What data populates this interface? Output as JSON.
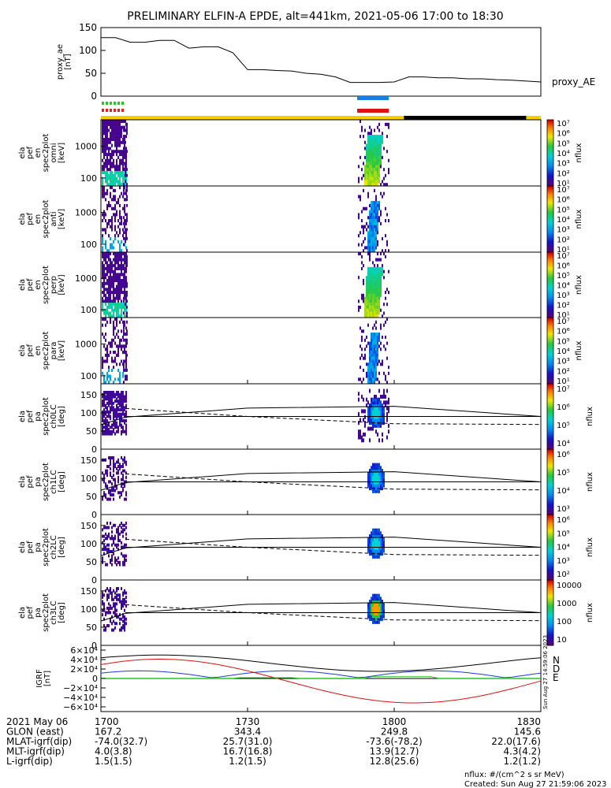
{
  "title": "PRELIMINARY ELFIN-A EPDE, alt=441km, 2021-05-06 17:00 to 18:30",
  "chart_data": {
    "type": "multi-panel",
    "time_start_min": 0,
    "time_end_min": 90,
    "proxy_ae": {
      "ylabel": [
        "proxy_ae",
        "[nT]"
      ],
      "legend": "proxy_AE",
      "ylim": [
        0,
        150
      ],
      "yticks": [
        "150",
        "100",
        "50",
        "0"
      ],
      "t": [
        0,
        3,
        6,
        9,
        12,
        15,
        18,
        21,
        24,
        27,
        30,
        33,
        36,
        39,
        42,
        45,
        48,
        51,
        54,
        57,
        60,
        63,
        66,
        69,
        72,
        75,
        78,
        81,
        84,
        87,
        90
      ],
      "v": [
        128,
        128,
        118,
        118,
        122,
        122,
        105,
        108,
        108,
        95,
        58,
        58,
        56,
        55,
        50,
        48,
        42,
        30,
        30,
        30,
        31,
        42,
        42,
        40,
        40,
        38,
        38,
        36,
        35,
        33,
        31
      ]
    },
    "status_bar": {
      "color_main": "#f0d000",
      "color_dark": "#000000",
      "dark_start_min": 62,
      "dark_end_min": 87
    },
    "markers": {
      "left_colors": [
        "#22cc22",
        "#dd2222"
      ],
      "right_colors": [
        "#1a7ee0",
        "#dd1111"
      ]
    },
    "energy_panels": [
      {
        "ylabel": [
          "ela",
          "pef",
          "en",
          "spec2plot",
          "omni",
          "[keV]"
        ],
        "yticks": [
          "1000",
          "100"
        ],
        "cb_label": "nflux"
      },
      {
        "ylabel": [
          "ela",
          "pef",
          "en",
          "spec2plot",
          "anti",
          "[keV]"
        ],
        "yticks": [
          "1000",
          "100"
        ],
        "cb_label": "nflux"
      },
      {
        "ylabel": [
          "ela",
          "pef",
          "en",
          "spec2plot",
          "perp",
          "[keV]"
        ],
        "yticks": [
          "1000",
          "100"
        ],
        "cb_label": "nflux"
      },
      {
        "ylabel": [
          "ela",
          "pef",
          "en",
          "spec2plot",
          "para",
          "[keV]"
        ],
        "yticks": [
          "1000",
          "100"
        ],
        "cb_label": "nflux"
      }
    ],
    "energy_cb_ticks": [
      "10⁷",
      "10⁶",
      "10⁵",
      "10⁴",
      "10³",
      "10²",
      "10¹"
    ],
    "pa_panels": [
      {
        "ylabel": [
          "ela",
          "pef",
          "pa",
          "spec2plot",
          "ch0LC",
          "[deg]"
        ],
        "yticks": [
          "150",
          "100",
          "50",
          "0"
        ],
        "cb_ticks": [
          "10⁷",
          "10⁶",
          "10⁵",
          "10⁴"
        ],
        "cb_label": "nflux"
      },
      {
        "ylabel": [
          "ela",
          "pef",
          "pa",
          "spec2plot",
          "ch1LC",
          "[deg]"
        ],
        "yticks": [
          "150",
          "100",
          "50",
          "0"
        ],
        "cb_ticks": [
          "10⁶",
          "10⁵",
          "10⁴",
          "10³"
        ],
        "cb_label": "nflux"
      },
      {
        "ylabel": [
          "ela",
          "pef",
          "pa",
          "spec2plot",
          "ch2LC",
          "[deg]"
        ],
        "yticks": [
          "150",
          "100",
          "50",
          "0"
        ],
        "cb_ticks": [
          "10⁶",
          "10⁵",
          "10⁴",
          "10³",
          "10²"
        ],
        "cb_label": "nflux"
      },
      {
        "ylabel": [
          "ela",
          "pef",
          "pa",
          "spec2plot",
          "ch3LC",
          "[deg]"
        ],
        "yticks": [
          "150",
          "100",
          "50",
          "0"
        ],
        "cb_ticks": [
          "10000",
          "1000",
          "100",
          "10"
        ],
        "cb_label": "nflux"
      }
    ],
    "igrf": {
      "ylabel": [
        "IGRF",
        "[nT]"
      ],
      "yticks": [
        "6×10⁴",
        "4×10⁴",
        "2×10⁴",
        "0",
        "−2×10⁴",
        "−4×10⁴",
        "−6×10⁴"
      ],
      "legend": [
        {
          "name": "N",
          "color": "#1a3adf"
        },
        {
          "name": "D",
          "color": "#dd1111"
        },
        {
          "name": "E",
          "color": "#22cc22"
        }
      ],
      "side_text": "Sun Aug 27 14:59:06 2023"
    },
    "x_labels": {
      "rows": [
        {
          "label": "2021 May 06",
          "values": [
            "1700",
            "1730",
            "1800",
            "1830"
          ]
        },
        {
          "label": "GLON (east)",
          "values": [
            "167.2",
            "343.4",
            "249.8",
            "145.6"
          ]
        },
        {
          "label": "MLAT-igrf(dip)",
          "values": [
            "-74.0(32.7)",
            "25.7(31.0)",
            "-73.6(-78.2)",
            "22.0(17.6)"
          ]
        },
        {
          "label": "MLT-igrf(dip)",
          "values": [
            "4.0(3.8)",
            "16.7(16.8)",
            "13.9(12.7)",
            "4.3(4.2)"
          ]
        },
        {
          "label": "L-igrf(dip)",
          "values": [
            "1.5(1.5)",
            "1.2(1.5)",
            "12.8(25.6)",
            "1.2(1.2)"
          ]
        }
      ]
    }
  },
  "footer": {
    "units": "nflux: #/(cm^2 s sr MeV)",
    "created": "Created: Sun Aug 27 21:59:06 2023"
  }
}
